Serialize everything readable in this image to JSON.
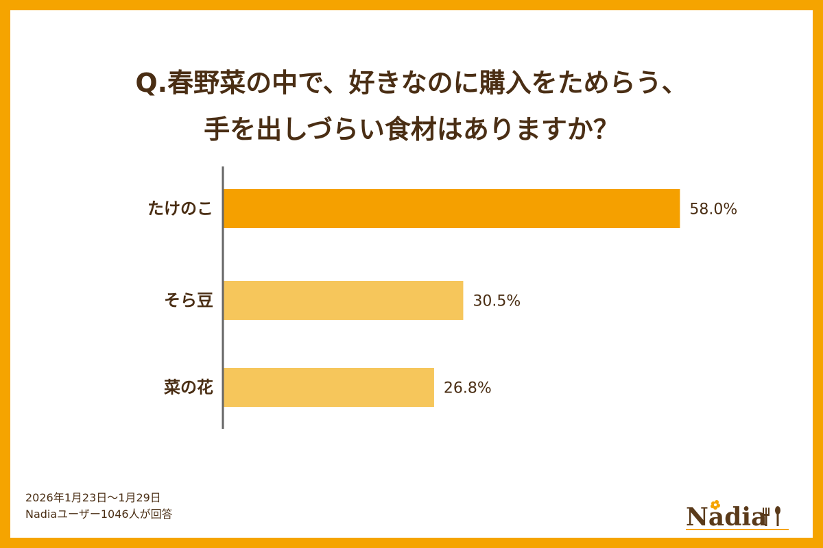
{
  "title": {
    "line1": "Q.春野菜の中で、好きなのに購入をためらう、",
    "line2": "手を出しづらい食材はありますか？"
  },
  "chart_data": {
    "type": "bar",
    "orientation": "horizontal",
    "categories": [
      "たけのこ",
      "そら豆",
      "菜の花"
    ],
    "values": [
      58.0,
      30.5,
      26.8
    ],
    "value_labels": [
      "58.0%",
      "30.5%",
      "26.8%"
    ],
    "unit": "%",
    "xlim": [
      0,
      100
    ],
    "grid": false,
    "colors": [
      "#F5A000",
      "#F6C65B",
      "#F6C65B"
    ]
  },
  "footer": {
    "period": "2026年1月23日〜1月29日",
    "respondents": "Nadiaユーザー1046人が回答"
  },
  "logo": {
    "text": "Nadia"
  },
  "colors": {
    "frame": "#F5A400",
    "text": "#4A2E14",
    "axis": "#666666"
  }
}
